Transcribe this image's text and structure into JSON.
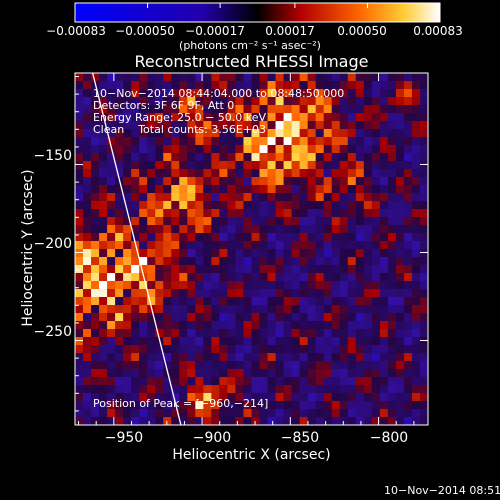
{
  "chart_data": {
    "type": "heatmap",
    "title": "Reconstructed RHESSI Image",
    "xlabel": "Heliocentric X (arcsec)",
    "ylabel": "Heliocentric Y (arcsec)",
    "xlim": [
      -972,
      -772
    ],
    "ylim": [
      -298,
      -98
    ],
    "x_ticks": [
      -950,
      -900,
      -850,
      -800
    ],
    "x_tick_labels": [
      "−950",
      "−900",
      "−850",
      "−800"
    ],
    "y_ticks": [
      -150,
      -200,
      -250
    ],
    "y_tick_labels": [
      "−150",
      "−200",
      "−250"
    ],
    "colorbar": {
      "min": -0.00083,
      "max": 0.00083,
      "ticks": [
        -0.00083,
        -0.0005,
        -0.00017,
        0.00017,
        0.0005,
        0.00083
      ],
      "tick_labels": [
        "−0.00083",
        "−0.00050",
        "−0.00017",
        "0.00017",
        "0.00050",
        "0.00083"
      ],
      "unit_label": "(photons cm⁻² s⁻¹ asec⁻²)"
    },
    "annotations": [
      "10−Nov−2014 08:44:04.000 to 08:48:50.000",
      "Detectors: 3F 6F 9F, Att 0",
      "Energy Range: 25.0 − 50.0 keV",
      "Clean    Total counts: 3.56E+03",
      "Position of Peak = [−960,−214]"
    ],
    "peak": [
      -960,
      -214
    ],
    "limb_line": [
      [
        -962,
        -98
      ],
      [
        -912,
        -298
      ]
    ],
    "grid": false
  },
  "footer": {
    "timestamp": "10−Nov−2014 08:51"
  },
  "colors": {
    "background": "#000000",
    "text": "#ffffff",
    "limb": "#ffffff"
  }
}
